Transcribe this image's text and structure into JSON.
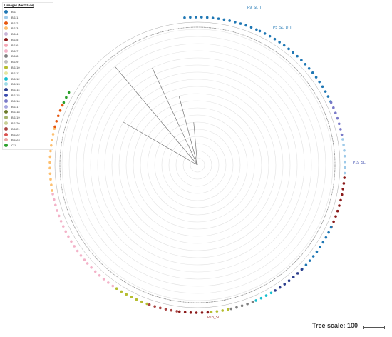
{
  "legend": {
    "title": "Lineages (Nextclade)",
    "items": [
      {
        "label": "B.1",
        "color": "#1f77b4"
      },
      {
        "label": "B.1.1",
        "color": "#9ecae9"
      },
      {
        "label": "B.1.2",
        "color": "#e6550d"
      },
      {
        "label": "B.1.3",
        "color": "#fdbf6f"
      },
      {
        "label": "B.1.4",
        "color": "#c7b3d6"
      },
      {
        "label": "B.1.5",
        "color": "#8b1a1a"
      },
      {
        "label": "B.1.6",
        "color": "#f4a6b6"
      },
      {
        "label": "B.1.7",
        "color": "#f3b2c8"
      },
      {
        "label": "B.1.8",
        "color": "#7f7f7f"
      },
      {
        "label": "B.1.9",
        "color": "#bdbdbd"
      },
      {
        "label": "B.1.10",
        "color": "#b5bd2f"
      },
      {
        "label": "B.1.11",
        "color": "#e5e5a1"
      },
      {
        "label": "B.1.12",
        "color": "#17becf"
      },
      {
        "label": "B.1.13",
        "color": "#9edae5"
      },
      {
        "label": "B.1.14",
        "color": "#2c3e8c"
      },
      {
        "label": "B.1.15",
        "color": "#3b4bae"
      },
      {
        "label": "B.1.16",
        "color": "#7a7ac8"
      },
      {
        "label": "B.1.17",
        "color": "#a6a6e0"
      },
      {
        "label": "B.1.18",
        "color": "#6b7a2a"
      },
      {
        "label": "B.1.19",
        "color": "#a3b36b"
      },
      {
        "label": "B.1.20",
        "color": "#c8cf95"
      },
      {
        "label": "B.1.21",
        "color": "#a94442"
      },
      {
        "label": "B.1.22",
        "color": "#d9534f"
      },
      {
        "label": "B.1.23",
        "color": "#e9a3a0"
      },
      {
        "label": "C.1",
        "color": "#2ca02c"
      }
    ]
  },
  "tree_labels": {
    "top": "P9_SL_I",
    "top2": "P5_SL_D_I",
    "right": "P19_SL_I",
    "bottom": "P18_SL"
  },
  "scale": {
    "label": "Tree scale: 100"
  }
}
